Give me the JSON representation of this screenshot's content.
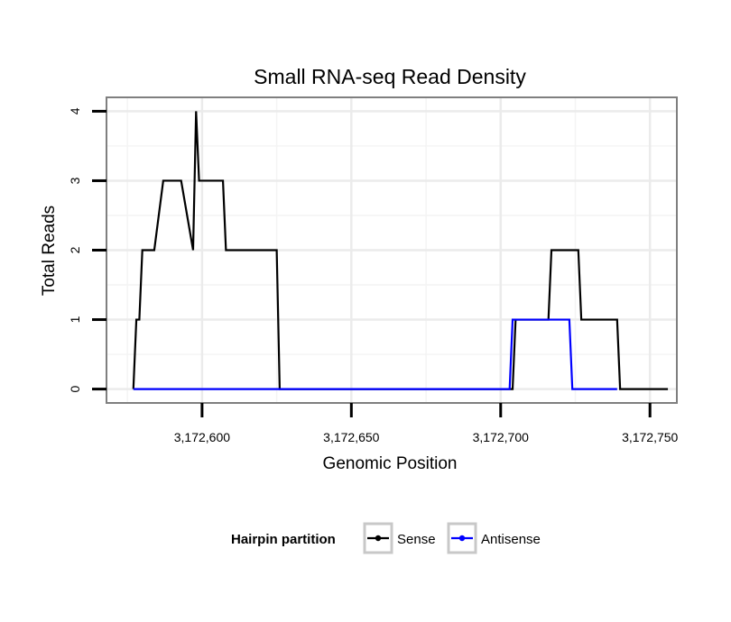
{
  "chart_data": {
    "type": "line",
    "title": "Small RNA-seq Read Density",
    "xlabel": "Genomic Position",
    "ylabel": "Total Reads",
    "xlim": [
      3172568,
      3172759
    ],
    "ylim": [
      -0.2,
      4.2
    ],
    "x_ticks": [
      3172600,
      3172650,
      3172700,
      3172750
    ],
    "x_tick_labels": [
      "3,172,600",
      "3,172,650",
      "3,172,700",
      "3,172,750"
    ],
    "y_ticks": [
      0,
      1,
      2,
      3,
      4
    ],
    "y_tick_labels": [
      "0",
      "1",
      "2",
      "3",
      "4"
    ],
    "grid": true,
    "legend": {
      "title": "Hairpin partition",
      "position": "bottom",
      "entries": [
        "Sense",
        "Antisense"
      ]
    },
    "series": [
      {
        "name": "Sense",
        "color": "#000000",
        "x": [
          3172577,
          3172578,
          3172579,
          3172580,
          3172583,
          3172584,
          3172587,
          3172588,
          3172593,
          3172597,
          3172598,
          3172599,
          3172600,
          3172607,
          3172608,
          3172625,
          3172626,
          3172704,
          3172705,
          3172716,
          3172717,
          3172726,
          3172727,
          3172739,
          3172740,
          3172756
        ],
        "y": [
          0,
          1,
          1,
          2,
          2,
          2,
          3,
          3,
          3,
          2,
          4,
          3,
          3,
          3,
          2,
          2,
          0,
          0,
          1,
          1,
          2,
          2,
          1,
          1,
          0,
          0
        ]
      },
      {
        "name": "Antisense",
        "color": "#0000ff",
        "x": [
          3172577,
          3172703,
          3172704,
          3172716,
          3172717,
          3172723,
          3172724,
          3172739
        ],
        "y": [
          0,
          0,
          1,
          1,
          1,
          1,
          0,
          0
        ]
      }
    ]
  }
}
